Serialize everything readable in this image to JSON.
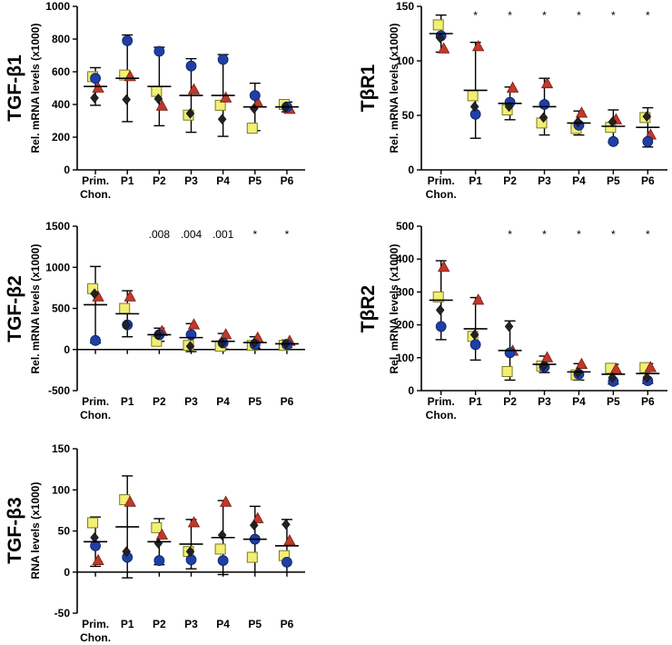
{
  "colors": {
    "yellow": "#f2ef74",
    "red": "#c0392b",
    "blue": "#1f3fa8",
    "black": "#222222"
  },
  "chart_data": [
    {
      "id": "tgfb1",
      "type": "scatter",
      "gene": "TGF-β1",
      "ylabel": "Rel. mRNA levels (x1000)",
      "categories": [
        "Prim.\nChon.",
        "P1",
        "P2",
        "P3",
        "P4",
        "P5",
        "P6"
      ],
      "ylim": [
        0,
        1000
      ],
      "yticks": [
        0,
        200,
        400,
        600,
        800,
        1000
      ],
      "annotations": [
        "",
        "",
        "",
        "",
        "",
        "",
        ""
      ],
      "mean": [
        510,
        560,
        510,
        455,
        455,
        385,
        385
      ],
      "sd": [
        115,
        265,
        240,
        225,
        250,
        145,
        30
      ],
      "series": [
        {
          "name": "square",
          "values": [
            570,
            580,
            480,
            335,
            395,
            255,
            400
          ]
        },
        {
          "name": "triangle",
          "values": [
            500,
            570,
            390,
            490,
            440,
            410,
            370
          ]
        },
        {
          "name": "circle",
          "values": [
            560,
            790,
            725,
            635,
            675,
            455,
            385
          ]
        },
        {
          "name": "diamond",
          "values": [
            440,
            430,
            435,
            345,
            310,
            375,
            385
          ]
        }
      ]
    },
    {
      "id": "tbr1",
      "type": "scatter",
      "gene": "TβR1",
      "ylabel": "Rel. mRNA levels (x1000)",
      "categories": [
        "Prim.\nChon.",
        "P1",
        "P2",
        "P3",
        "P4",
        "P5",
        "P6"
      ],
      "ylim": [
        0,
        150
      ],
      "yticks": [
        0,
        50,
        100,
        150
      ],
      "annotations": [
        "",
        "*",
        "*",
        "*",
        "*",
        "*",
        "*"
      ],
      "mean": [
        125,
        73,
        61,
        58,
        43,
        40,
        39
      ],
      "sd": [
        17,
        44,
        15,
        26,
        11,
        15,
        18
      ],
      "series": [
        {
          "name": "square",
          "values": [
            133,
            68,
            55,
            43,
            38,
            39,
            48
          ]
        },
        {
          "name": "triangle",
          "values": [
            111,
            113,
            75,
            79,
            52,
            46,
            32
          ]
        },
        {
          "name": "circle",
          "values": [
            123,
            51,
            62,
            60,
            41,
            26,
            26
          ]
        },
        {
          "name": "diamond",
          "values": [
            121,
            58,
            58,
            48,
            44,
            44,
            49
          ]
        }
      ]
    },
    {
      "id": "tgfb2",
      "type": "scatter",
      "gene": "TGF-β2",
      "ylabel": "Rel. mRNA levels (x1000)",
      "categories": [
        "Prim.\nChon.",
        "P1",
        "P2",
        "P3",
        "P4",
        "P5",
        "P6"
      ],
      "ylim": [
        -500,
        1500
      ],
      "yticks": [
        -500,
        0,
        500,
        1000,
        1500
      ],
      "annotations": [
        "",
        "",
        ".008",
        ".004",
        ".001",
        "*",
        "*"
      ],
      "mean": [
        545,
        435,
        180,
        145,
        100,
        85,
        70
      ],
      "sd": [
        465,
        280,
        80,
        170,
        95,
        70,
        45
      ],
      "series": [
        {
          "name": "square",
          "values": [
            740,
            500,
            100,
            50,
            40,
            50,
            50
          ]
        },
        {
          "name": "triangle",
          "values": [
            640,
            640,
            220,
            300,
            180,
            140,
            100
          ]
        },
        {
          "name": "circle",
          "values": [
            110,
            300,
            180,
            180,
            80,
            60,
            60
          ]
        },
        {
          "name": "diamond",
          "values": [
            680,
            300,
            180,
            40,
            80,
            80,
            70
          ]
        }
      ]
    },
    {
      "id": "tbr2",
      "type": "scatter",
      "gene": "TβR2",
      "ylabel": "Rel. mRNA levels (x1000)",
      "categories": [
        "Prim.\nChon.",
        "P1",
        "P2",
        "P3",
        "P4",
        "P5",
        "P6"
      ],
      "ylim": [
        0,
        500
      ],
      "yticks": [
        0,
        100,
        200,
        300,
        400,
        500
      ],
      "annotations": [
        "",
        "",
        "*",
        "*",
        "*",
        "*",
        "*"
      ],
      "mean": [
        275,
        188,
        122,
        80,
        57,
        50,
        52
      ],
      "sd": [
        120,
        95,
        90,
        25,
        25,
        30,
        30
      ],
      "series": [
        {
          "name": "square",
          "values": [
            285,
            165,
            58,
            75,
            48,
            68,
            70
          ]
        },
        {
          "name": "triangle",
          "values": [
            375,
            275,
            120,
            100,
            80,
            65,
            70
          ]
        },
        {
          "name": "circle",
          "values": [
            195,
            140,
            115,
            72,
            50,
            28,
            30
          ]
        },
        {
          "name": "diamond",
          "values": [
            245,
            170,
            195,
            75,
            55,
            40,
            40
          ]
        }
      ]
    },
    {
      "id": "tgfb3",
      "type": "scatter",
      "gene": "TGF-β3",
      "ylabel": "RNA levels (x1000)",
      "categories": [
        "Prim.\nChon.",
        "P1",
        "P2",
        "P3",
        "P4",
        "P5",
        "P6"
      ],
      "ylim": [
        -50,
        150
      ],
      "yticks": [
        -50,
        0,
        50,
        100,
        150
      ],
      "annotations": [
        "",
        "",
        "",
        "",
        "",
        "",
        ""
      ],
      "mean": [
        37,
        55,
        37,
        34,
        42,
        40,
        32
      ],
      "sd": [
        30,
        62,
        28,
        30,
        45,
        40,
        32
      ],
      "series": [
        {
          "name": "square",
          "values": [
            60,
            88,
            54,
            25,
            28,
            18,
            20
          ]
        },
        {
          "name": "triangle",
          "values": [
            14,
            85,
            45,
            60,
            85,
            65,
            38
          ]
        },
        {
          "name": "circle",
          "values": [
            32,
            18,
            14,
            15,
            14,
            40,
            12
          ]
        },
        {
          "name": "diamond",
          "values": [
            42,
            25,
            35,
            25,
            45,
            57,
            58
          ]
        }
      ]
    }
  ]
}
